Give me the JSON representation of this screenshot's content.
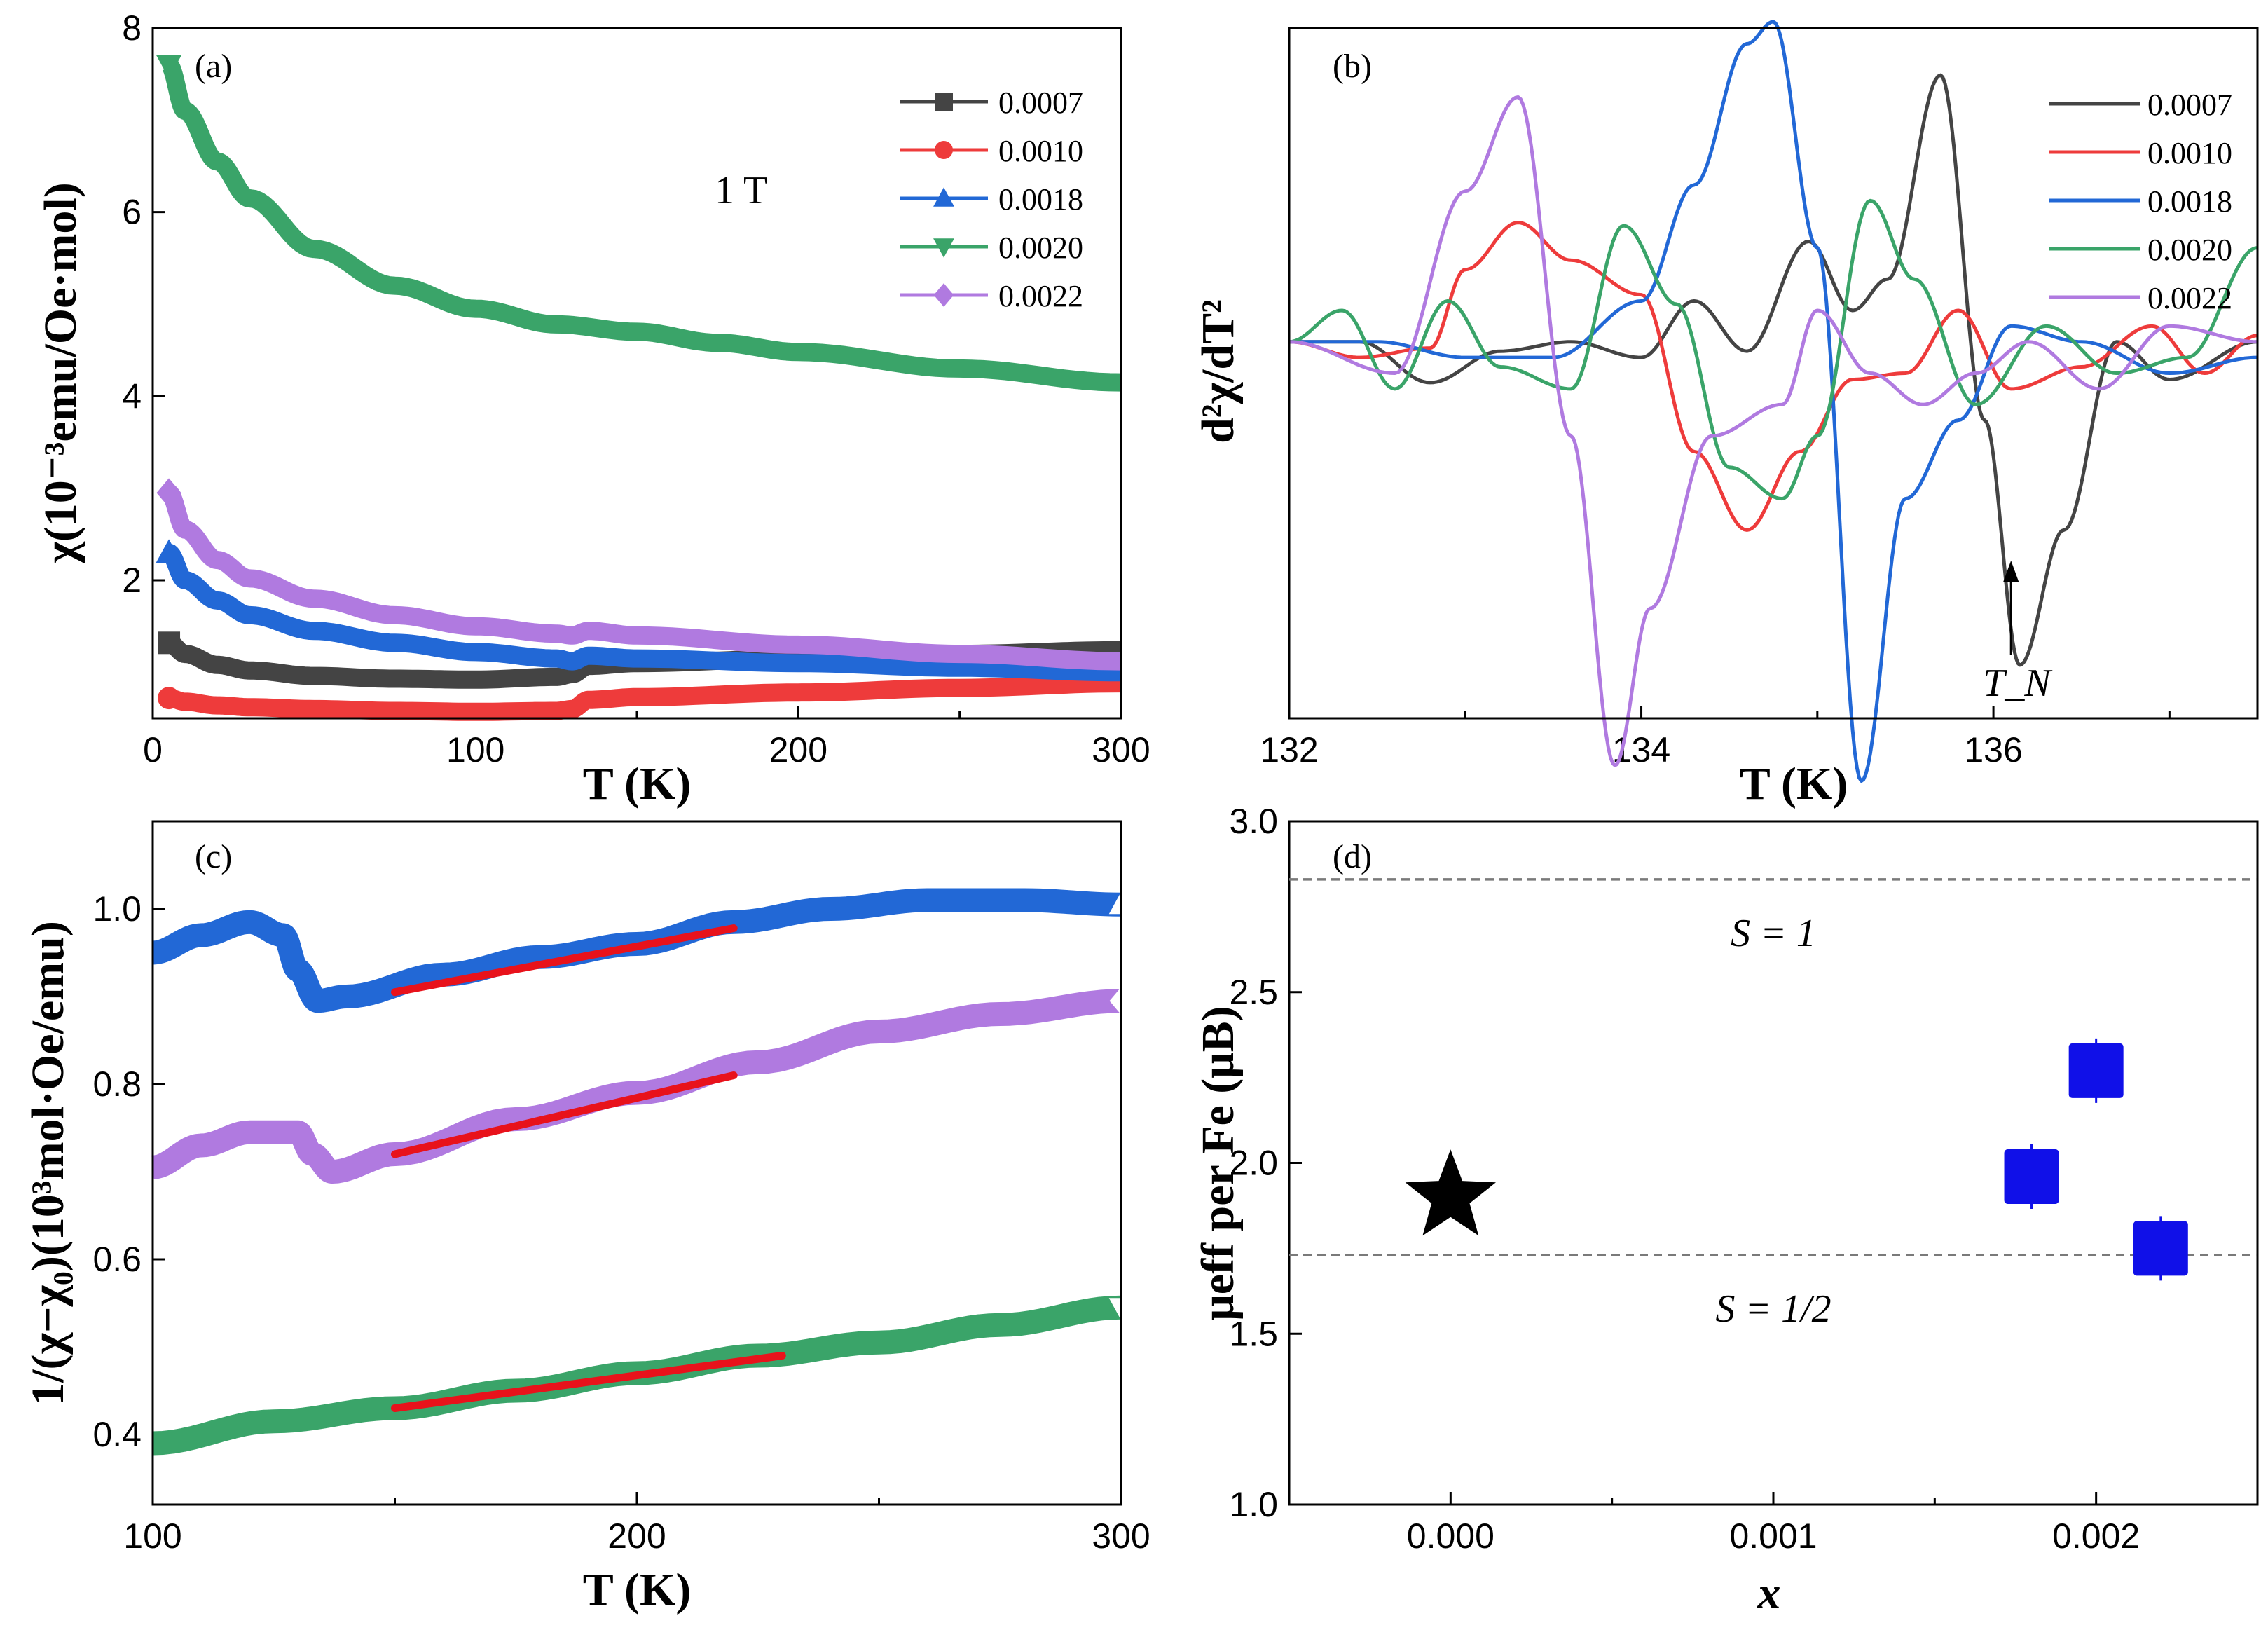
{
  "colors": {
    "black": "#444444",
    "red": "#ee3b3b",
    "blue": "#2268d6",
    "green": "#3aa469",
    "purple": "#b07ae0",
    "fit": "#e8121b",
    "marker_blue": "#1010e8",
    "dashed": "#7a7a7a"
  },
  "chart_data": [
    {
      "panel": "(a)",
      "type": "scatter",
      "annotation": "1 T",
      "xlabel": "T (K)",
      "ylabel": "χ(10⁻³emu/Oe·mol)",
      "xlim": [
        0,
        300
      ],
      "ylim": [
        0.5,
        8
      ],
      "xticks": [
        "0",
        "100",
        "200",
        "300"
      ],
      "yticks": [
        "2",
        "4",
        "6",
        "8"
      ],
      "legend_position": "top-right",
      "series": [
        {
          "name": "0.0007",
          "marker": "square",
          "color": "#444444",
          "x": [
            5,
            10,
            20,
            30,
            50,
            75,
            100,
            125,
            130,
            135,
            150,
            200,
            250,
            300
          ],
          "y": [
            1.32,
            1.2,
            1.08,
            1.02,
            0.96,
            0.93,
            0.92,
            0.95,
            0.98,
            1.07,
            1.1,
            1.15,
            1.2,
            1.24
          ]
        },
        {
          "name": "0.0010",
          "marker": "circle",
          "color": "#ee3b3b",
          "x": [
            5,
            10,
            20,
            30,
            50,
            75,
            100,
            125,
            130,
            135,
            150,
            200,
            250,
            300
          ],
          "y": [
            0.72,
            0.68,
            0.64,
            0.62,
            0.6,
            0.58,
            0.57,
            0.58,
            0.6,
            0.7,
            0.73,
            0.78,
            0.83,
            0.88
          ]
        },
        {
          "name": "0.0018",
          "marker": "triangle-up",
          "color": "#2268d6",
          "x": [
            5,
            10,
            20,
            30,
            50,
            75,
            100,
            125,
            130,
            135,
            150,
            200,
            250,
            300
          ],
          "y": [
            2.3,
            2.0,
            1.78,
            1.62,
            1.45,
            1.32,
            1.22,
            1.15,
            1.12,
            1.18,
            1.15,
            1.1,
            1.05,
            1.0
          ]
        },
        {
          "name": "0.0020",
          "marker": "triangle-down",
          "color": "#3aa469",
          "x": [
            5,
            10,
            20,
            30,
            50,
            75,
            100,
            125,
            150,
            175,
            200,
            250,
            300
          ],
          "y": [
            7.6,
            7.1,
            6.55,
            6.15,
            5.6,
            5.2,
            4.95,
            4.78,
            4.7,
            4.58,
            4.48,
            4.3,
            4.15
          ]
        },
        {
          "name": "0.0022",
          "marker": "diamond",
          "color": "#b07ae0",
          "x": [
            5,
            10,
            20,
            30,
            50,
            75,
            100,
            125,
            130,
            135,
            150,
            200,
            250,
            300
          ],
          "y": [
            2.95,
            2.55,
            2.22,
            2.02,
            1.8,
            1.62,
            1.5,
            1.42,
            1.4,
            1.45,
            1.4,
            1.3,
            1.2,
            1.12
          ]
        }
      ]
    },
    {
      "panel": "(b)",
      "type": "line",
      "xlabel": "T (K)",
      "ylabel": "d²χ/dT²",
      "xlim": [
        132,
        137.5
      ],
      "ylim": [
        -1.2,
        1.0
      ],
      "xticks": [
        "132",
        "134",
        "136"
      ],
      "annotation": "T_N",
      "annotation_x": 136.1,
      "legend_position": "top-right",
      "series": [
        {
          "name": "0.0007",
          "color": "#444444",
          "x": [
            132,
            132.4,
            132.8,
            133.2,
            133.6,
            134.0,
            134.3,
            134.6,
            134.95,
            135.2,
            135.4,
            135.7,
            135.95,
            136.15,
            136.4,
            136.7,
            137.0,
            137.5
          ],
          "y": [
            0.0,
            0.0,
            -0.13,
            -0.03,
            0.0,
            -0.05,
            0.13,
            -0.03,
            0.32,
            0.1,
            0.2,
            0.85,
            -0.25,
            -1.03,
            -0.6,
            0.0,
            -0.12,
            0.0
          ]
        },
        {
          "name": "0.0010",
          "color": "#ee3b3b",
          "x": [
            132,
            132.4,
            132.8,
            133.0,
            133.3,
            133.6,
            134.0,
            134.3,
            134.6,
            134.9,
            135.2,
            135.5,
            135.8,
            136.1,
            136.5,
            136.9,
            137.2,
            137.5
          ],
          "y": [
            0.0,
            -0.05,
            -0.02,
            0.23,
            0.38,
            0.26,
            0.15,
            -0.35,
            -0.6,
            -0.35,
            -0.12,
            -0.1,
            0.1,
            -0.15,
            -0.08,
            0.05,
            -0.1,
            0.02
          ]
        },
        {
          "name": "0.0018",
          "color": "#2268d6",
          "x": [
            132,
            132.5,
            133.0,
            133.5,
            134.0,
            134.3,
            134.6,
            134.75,
            135.0,
            135.25,
            135.5,
            135.8,
            136.1,
            136.5,
            137.0,
            137.5
          ],
          "y": [
            0.0,
            0.0,
            -0.05,
            -0.05,
            0.13,
            0.5,
            0.95,
            1.02,
            0.3,
            -1.4,
            -0.5,
            -0.25,
            0.05,
            0.0,
            -0.1,
            -0.05
          ]
        },
        {
          "name": "0.0020",
          "color": "#3aa469",
          "x": [
            132,
            132.3,
            132.6,
            132.9,
            133.2,
            133.6,
            133.9,
            134.2,
            134.5,
            134.8,
            135.0,
            135.3,
            135.55,
            135.9,
            136.3,
            136.7,
            137.1,
            137.5
          ],
          "y": [
            0.0,
            0.1,
            -0.15,
            0.13,
            -0.08,
            -0.15,
            0.37,
            0.12,
            -0.4,
            -0.5,
            -0.3,
            0.45,
            0.2,
            -0.2,
            0.05,
            -0.1,
            -0.05,
            0.3
          ]
        },
        {
          "name": "0.0022",
          "color": "#b07ae0",
          "x": [
            132,
            132.6,
            133.0,
            133.3,
            133.6,
            133.85,
            134.05,
            134.4,
            134.8,
            135.0,
            135.3,
            135.6,
            135.9,
            136.2,
            136.6,
            137.0,
            137.5
          ],
          "y": [
            0.0,
            -0.1,
            0.48,
            0.78,
            -0.3,
            -1.35,
            -0.85,
            -0.3,
            -0.2,
            0.1,
            -0.1,
            -0.2,
            -0.1,
            0.0,
            -0.15,
            0.05,
            0.0
          ]
        }
      ]
    },
    {
      "panel": "(c)",
      "type": "scatter",
      "xlabel": "T (K)",
      "ylabel": "1/(χ−χ₀)(10³mol·Oe/emu)",
      "xlim": [
        100,
        300
      ],
      "ylim": [
        0.32,
        1.1
      ],
      "xticks": [
        "100",
        "200",
        "300"
      ],
      "yticks": [
        "0.4",
        "0.6",
        "0.8",
        "1.0"
      ],
      "series": [
        {
          "name": "0.0018",
          "color": "#2268d6",
          "marker": "triangle-up",
          "x": [
            100,
            110,
            120,
            127,
            130,
            134,
            140,
            160,
            180,
            200,
            220,
            240,
            260,
            280,
            300
          ],
          "y": [
            0.95,
            0.97,
            0.985,
            0.97,
            0.93,
            0.895,
            0.9,
            0.925,
            0.945,
            0.96,
            0.985,
            1.0,
            1.01,
            1.01,
            1.005
          ]
        },
        {
          "name": "0.0022",
          "color": "#b07ae0",
          "marker": "diamond",
          "x": [
            100,
            110,
            120,
            130,
            133,
            137,
            150,
            175,
            200,
            225,
            250,
            275,
            300
          ],
          "y": [
            0.705,
            0.73,
            0.745,
            0.745,
            0.72,
            0.7,
            0.72,
            0.76,
            0.79,
            0.825,
            0.86,
            0.88,
            0.895
          ]
        },
        {
          "name": "0.0020",
          "color": "#3aa469",
          "marker": "triangle-down",
          "x": [
            100,
            125,
            150,
            175,
            200,
            225,
            250,
            275,
            300
          ],
          "y": [
            0.39,
            0.415,
            0.43,
            0.45,
            0.47,
            0.49,
            0.505,
            0.525,
            0.545
          ]
        }
      ],
      "fits": [
        {
          "x": [
            150,
            220
          ],
          "y": [
            0.905,
            0.978
          ]
        },
        {
          "x": [
            150,
            220
          ],
          "y": [
            0.72,
            0.81
          ]
        },
        {
          "x": [
            150,
            230
          ],
          "y": [
            0.43,
            0.49
          ]
        }
      ]
    },
    {
      "panel": "(d)",
      "type": "scatter",
      "xlabel": "x",
      "ylabel": "μeff per Fe (μB)",
      "xlim": [
        -0.0005,
        0.0025
      ],
      "ylim": [
        1.0,
        3.0
      ],
      "xticks": [
        "0.000",
        "0.001",
        "0.002"
      ],
      "yticks": [
        "1.0",
        "1.5",
        "2.0",
        "2.5",
        "3.0"
      ],
      "reference_lines": [
        {
          "label": "S = 1",
          "y": 2.83
        },
        {
          "label": "S = 1/2",
          "y": 1.73
        }
      ],
      "points": [
        {
          "x": 0.0,
          "y": 1.9,
          "marker": "star"
        },
        {
          "x": 0.0018,
          "y": 1.96,
          "marker": "square"
        },
        {
          "x": 0.002,
          "y": 2.27,
          "marker": "square"
        },
        {
          "x": 0.0022,
          "y": 1.75,
          "marker": "square"
        }
      ]
    }
  ]
}
